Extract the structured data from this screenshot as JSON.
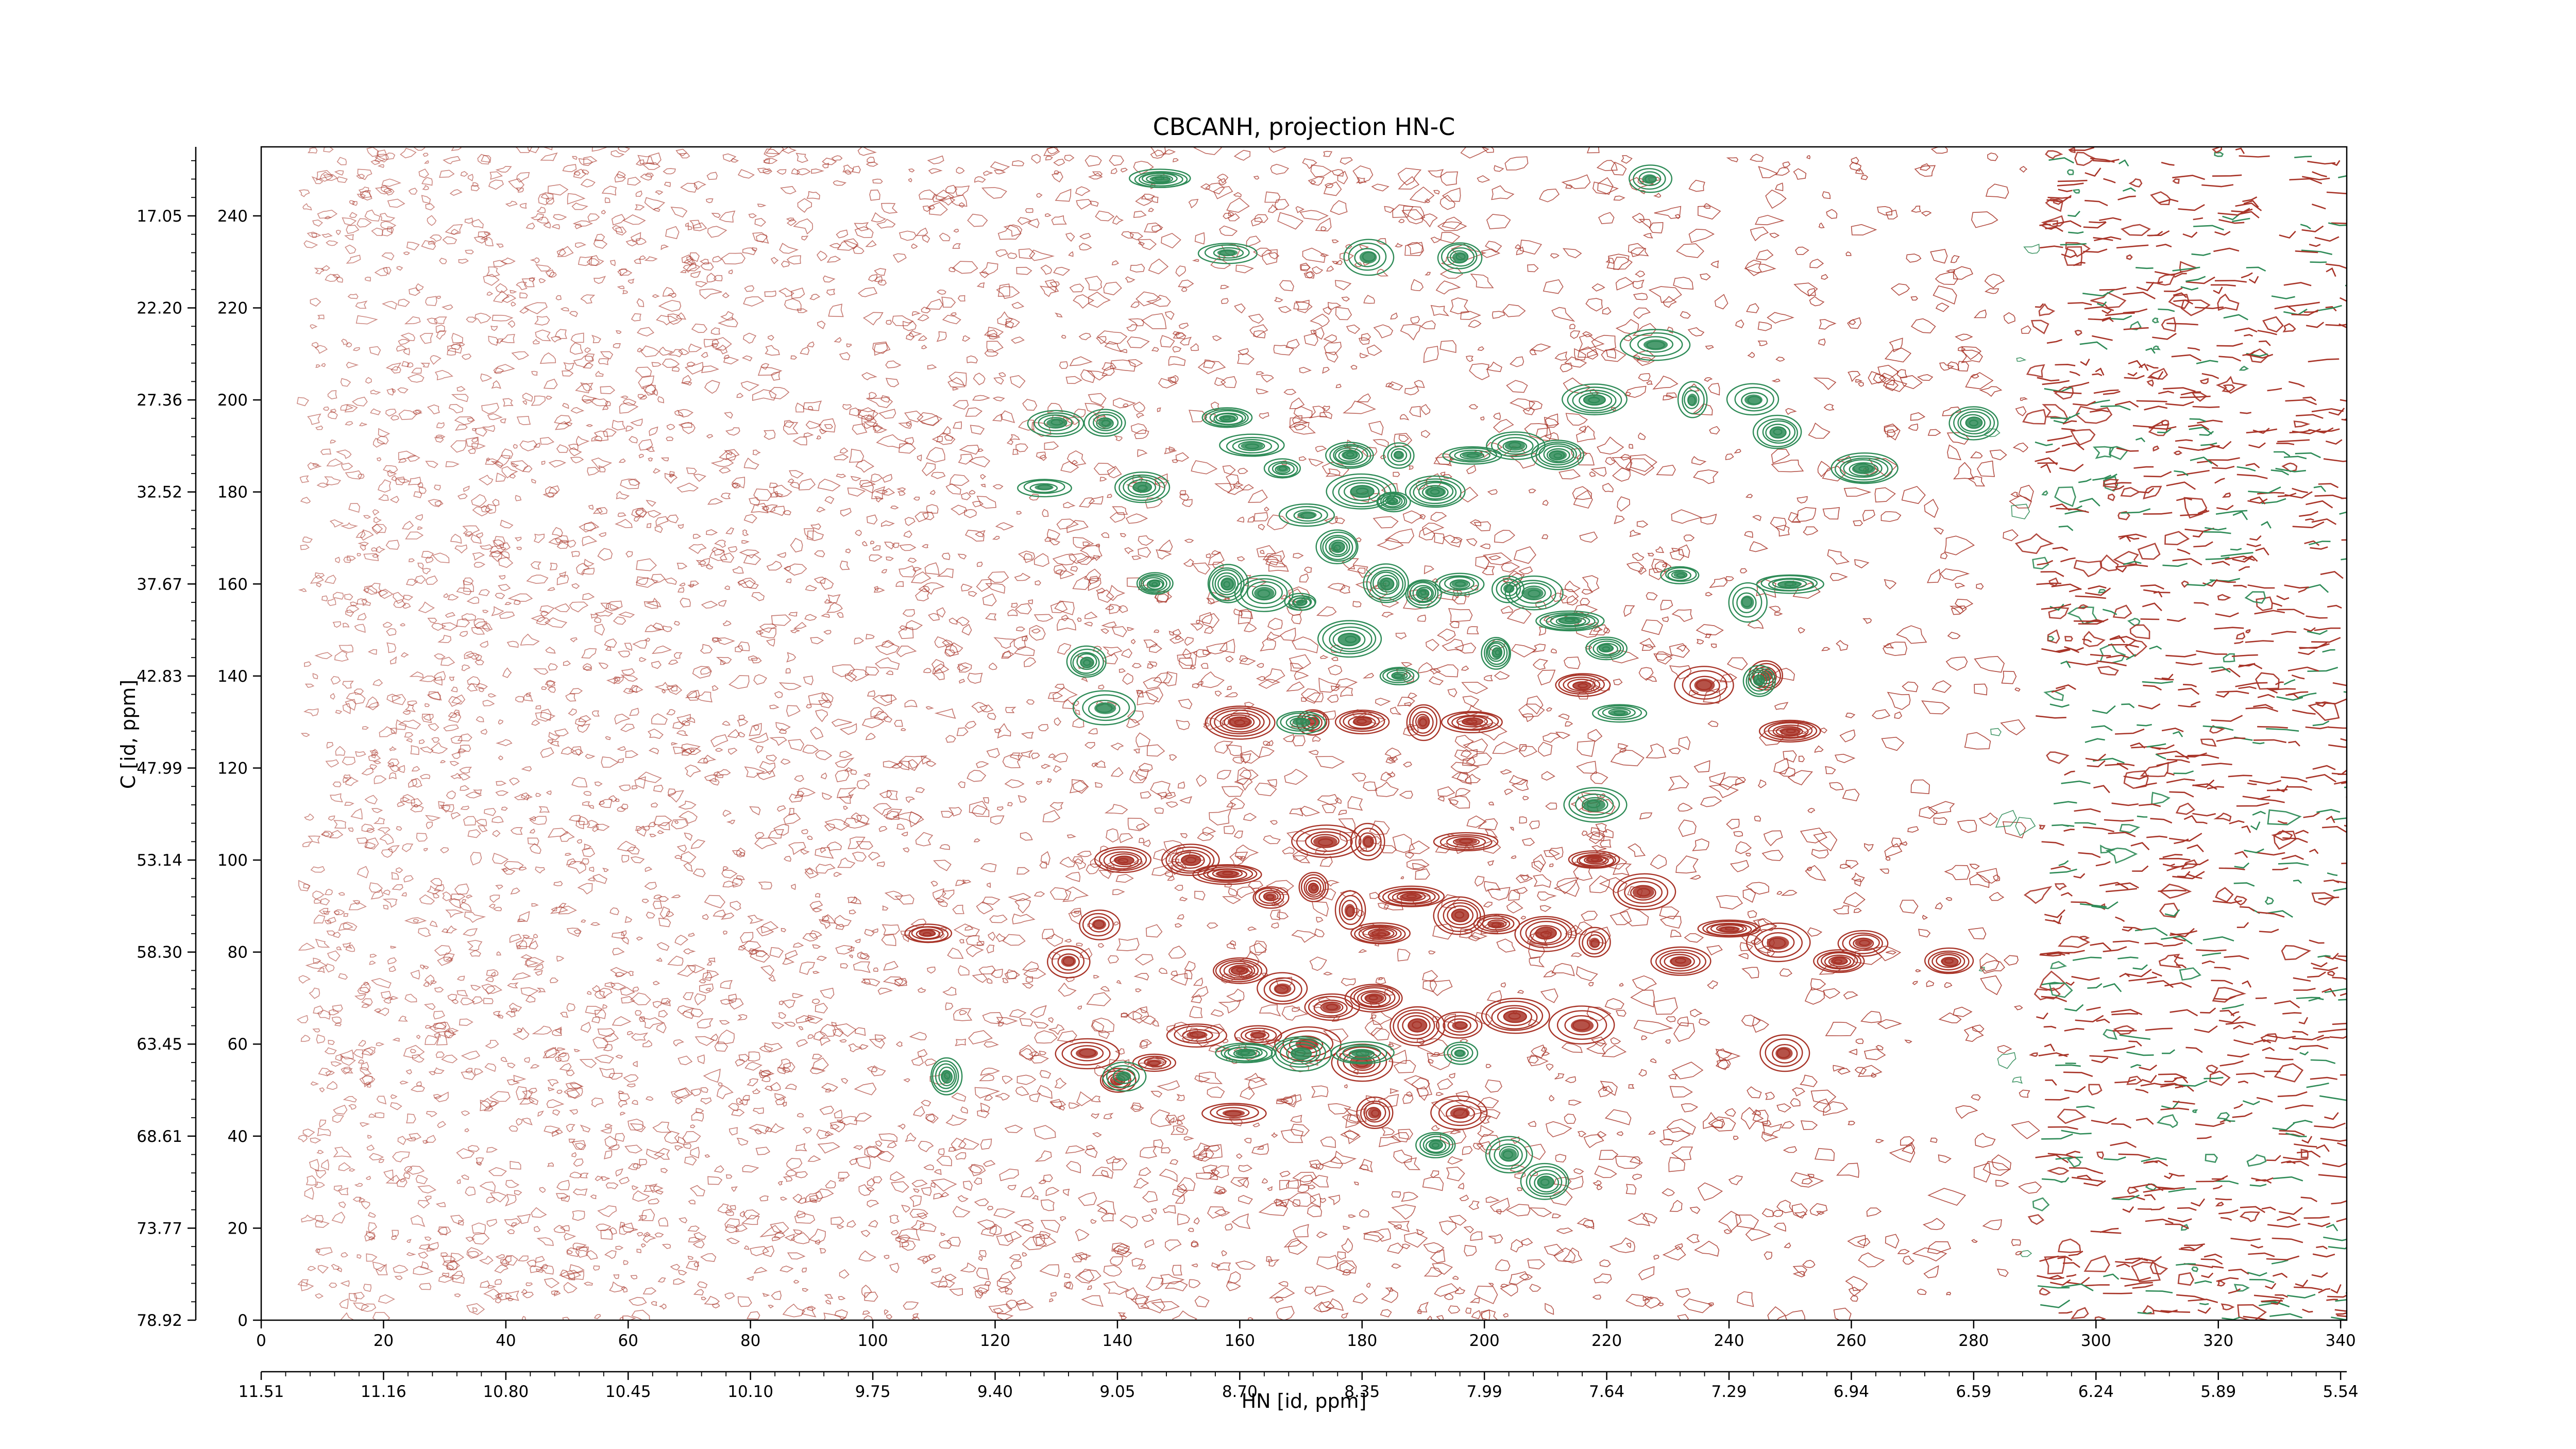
{
  "chart_data": {
    "type": "contour",
    "title": "CBCANH, projection HN-C",
    "xlabel": "HN [id, ppm]",
    "ylabel": "C [id, ppm]",
    "x_index_range": [
      0,
      341
    ],
    "y_index_range": [
      0,
      255
    ],
    "x_index_ticks": [
      "0",
      "20",
      "40",
      "60",
      "80",
      "100",
      "120",
      "140",
      "160",
      "180",
      "200",
      "220",
      "240",
      "260",
      "280",
      "300",
      "320",
      "340"
    ],
    "x_ppm_ticks": [
      "11.51",
      "11.16",
      "10.80",
      "10.45",
      "10.10",
      "9.75",
      "9.40",
      "9.05",
      "8.70",
      "8.35",
      "7.99",
      "7.64",
      "7.29",
      "6.94",
      "6.59",
      "6.24",
      "5.89",
      "5.54"
    ],
    "y_index_ticks": [
      "0",
      "20",
      "40",
      "60",
      "80",
      "100",
      "120",
      "140",
      "160",
      "180",
      "200",
      "220",
      "240"
    ],
    "y_ppm_ticks": [
      "78.92",
      "73.77",
      "68.61",
      "63.45",
      "58.30",
      "53.14",
      "47.99",
      "42.83",
      "37.67",
      "32.52",
      "27.36",
      "22.20",
      "17.05"
    ],
    "colors": {
      "positive": "#a83428",
      "negative": "#2e8b57"
    },
    "series": [
      {
        "name": "",
        "sign": "positive",
        "peaks": [
          [
            109,
            84
          ],
          [
            137,
            86
          ],
          [
            153,
            62
          ],
          [
            158,
            97
          ],
          [
            165,
            92
          ],
          [
            172,
            94
          ],
          [
            178,
            89
          ],
          [
            183,
            84
          ],
          [
            188,
            92
          ],
          [
            196,
            88
          ],
          [
            202,
            86
          ],
          [
            210,
            84
          ],
          [
            218,
            82
          ],
          [
            160,
            76
          ],
          [
            167,
            72
          ],
          [
            175,
            68
          ],
          [
            182,
            70
          ],
          [
            189,
            64
          ],
          [
            163,
            62
          ],
          [
            171,
            60
          ],
          [
            180,
            56
          ],
          [
            196,
            64
          ],
          [
            205,
            66
          ],
          [
            216,
            64
          ],
          [
            226,
            93
          ],
          [
            232,
            78
          ],
          [
            240,
            85
          ],
          [
            248,
            82
          ],
          [
            249,
            58
          ],
          [
            258,
            78
          ],
          [
            262,
            82
          ],
          [
            276,
            78
          ],
          [
            174,
            104
          ],
          [
            181,
            104
          ],
          [
            197,
            104
          ],
          [
            218,
            100
          ],
          [
            132,
            78
          ],
          [
            135,
            58
          ],
          [
            140,
            52
          ],
          [
            146,
            56
          ],
          [
            141,
            100
          ],
          [
            152,
            100
          ],
          [
            160,
            130
          ],
          [
            172,
            130
          ],
          [
            180,
            130
          ],
          [
            190,
            130
          ],
          [
            198,
            130
          ],
          [
            236,
            138
          ],
          [
            246,
            140
          ],
          [
            250,
            128
          ],
          [
            216,
            138
          ],
          [
            182,
            45
          ],
          [
            196,
            45
          ],
          [
            159,
            45
          ]
        ]
      },
      {
        "name": "",
        "sign": "negative",
        "peaks": [
          [
            147,
            248
          ],
          [
            158,
            232
          ],
          [
            181,
            231
          ],
          [
            196,
            231
          ],
          [
            227,
            248
          ],
          [
            130,
            195
          ],
          [
            138,
            195
          ],
          [
            128,
            181
          ],
          [
            144,
            181
          ],
          [
            158,
            196
          ],
          [
            162,
            190
          ],
          [
            167,
            185
          ],
          [
            171,
            175
          ],
          [
            178,
            188
          ],
          [
            186,
            188
          ],
          [
            192,
            180
          ],
          [
            198,
            188
          ],
          [
            205,
            190
          ],
          [
            212,
            188
          ],
          [
            218,
            200
          ],
          [
            228,
            212
          ],
          [
            234,
            200
          ],
          [
            244,
            200
          ],
          [
            248,
            193
          ],
          [
            262,
            185
          ],
          [
            280,
            195
          ],
          [
            176,
            168
          ],
          [
            180,
            180
          ],
          [
            185,
            178
          ],
          [
            146,
            160
          ],
          [
            158,
            160
          ],
          [
            164,
            158
          ],
          [
            170,
            156
          ],
          [
            178,
            148
          ],
          [
            184,
            160
          ],
          [
            190,
            158
          ],
          [
            196,
            160
          ],
          [
            202,
            145
          ],
          [
            208,
            158
          ],
          [
            214,
            152
          ],
          [
            220,
            146
          ],
          [
            222,
            132
          ],
          [
            232,
            162
          ],
          [
            243,
            156
          ],
          [
            250,
            160
          ],
          [
            135,
            143
          ],
          [
            138,
            133
          ],
          [
            141,
            53
          ],
          [
            161,
            58
          ],
          [
            170,
            58
          ],
          [
            180,
            58
          ],
          [
            196,
            58
          ],
          [
            218,
            112
          ],
          [
            192,
            38
          ],
          [
            204,
            36
          ],
          [
            210,
            30
          ],
          [
            112,
            53
          ],
          [
            245,
            139
          ],
          [
            204,
            159
          ],
          [
            170,
            130
          ],
          [
            186,
            140
          ]
        ]
      }
    ]
  }
}
